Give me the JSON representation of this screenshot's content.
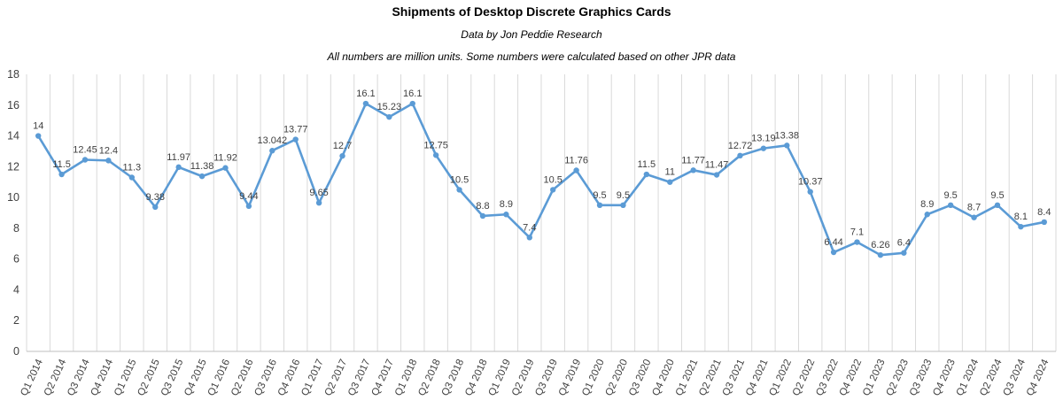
{
  "chart_data": {
    "type": "line",
    "title": "Shipments of Desktop Discrete Graphics Cards",
    "subtitle": "Data by Jon Peddie Research",
    "note": "All numbers are million units. Some numbers were calculated based on other JPR data",
    "categories": [
      "Q1 2014",
      "Q2 2014",
      "Q3 2014",
      "Q4 2014",
      "Q1 2015",
      "Q2 2015",
      "Q3 2015",
      "Q4 2015",
      "Q1 2016",
      "Q2 2016",
      "Q3 2016",
      "Q4 2016",
      "Q1 2017",
      "Q2 2017",
      "Q3 2017",
      "Q4 2017",
      "Q1 2018",
      "Q2 2018",
      "Q3 2018",
      "Q4 2018",
      "Q1 2019",
      "Q2 2019",
      "Q3 2019",
      "Q4 2019",
      "Q1 2020",
      "Q2 2020",
      "Q3 2020",
      "Q4 2020",
      "Q1 2021",
      "Q2 2021",
      "Q3 2021",
      "Q4 2021",
      "Q1 2022",
      "Q2 2022",
      "Q3 2022",
      "Q4 2022",
      "Q1 2023",
      "Q2 2023",
      "Q3 2023",
      "Q4 2023",
      "Q1 2024",
      "Q2 2024",
      "Q3 2024",
      "Q4 2024"
    ],
    "values": [
      14,
      11.5,
      12.45,
      12.4,
      11.3,
      9.38,
      11.97,
      11.38,
      11.92,
      9.44,
      13.042,
      13.77,
      9.65,
      12.7,
      16.1,
      15.23,
      16.1,
      12.75,
      10.5,
      8.8,
      8.9,
      7.4,
      10.5,
      11.76,
      9.5,
      9.5,
      11.5,
      11,
      11.77,
      11.47,
      12.72,
      13.19,
      13.38,
      10.37,
      6.44,
      7.1,
      6.26,
      6.4,
      8.9,
      9.5,
      8.7,
      9.5,
      8.1,
      8.4
    ],
    "xlabel": "",
    "ylabel": "",
    "ylim": [
      0,
      18
    ],
    "ytick_step": 2,
    "grid": "vertical",
    "legend": "none",
    "line_color": "#5b9bd5",
    "gridline_color": "#d9d9d9",
    "axis_line_color": "#bfbfbf",
    "label_color": "#3f3f3f",
    "tick_label_color": "#404040"
  }
}
